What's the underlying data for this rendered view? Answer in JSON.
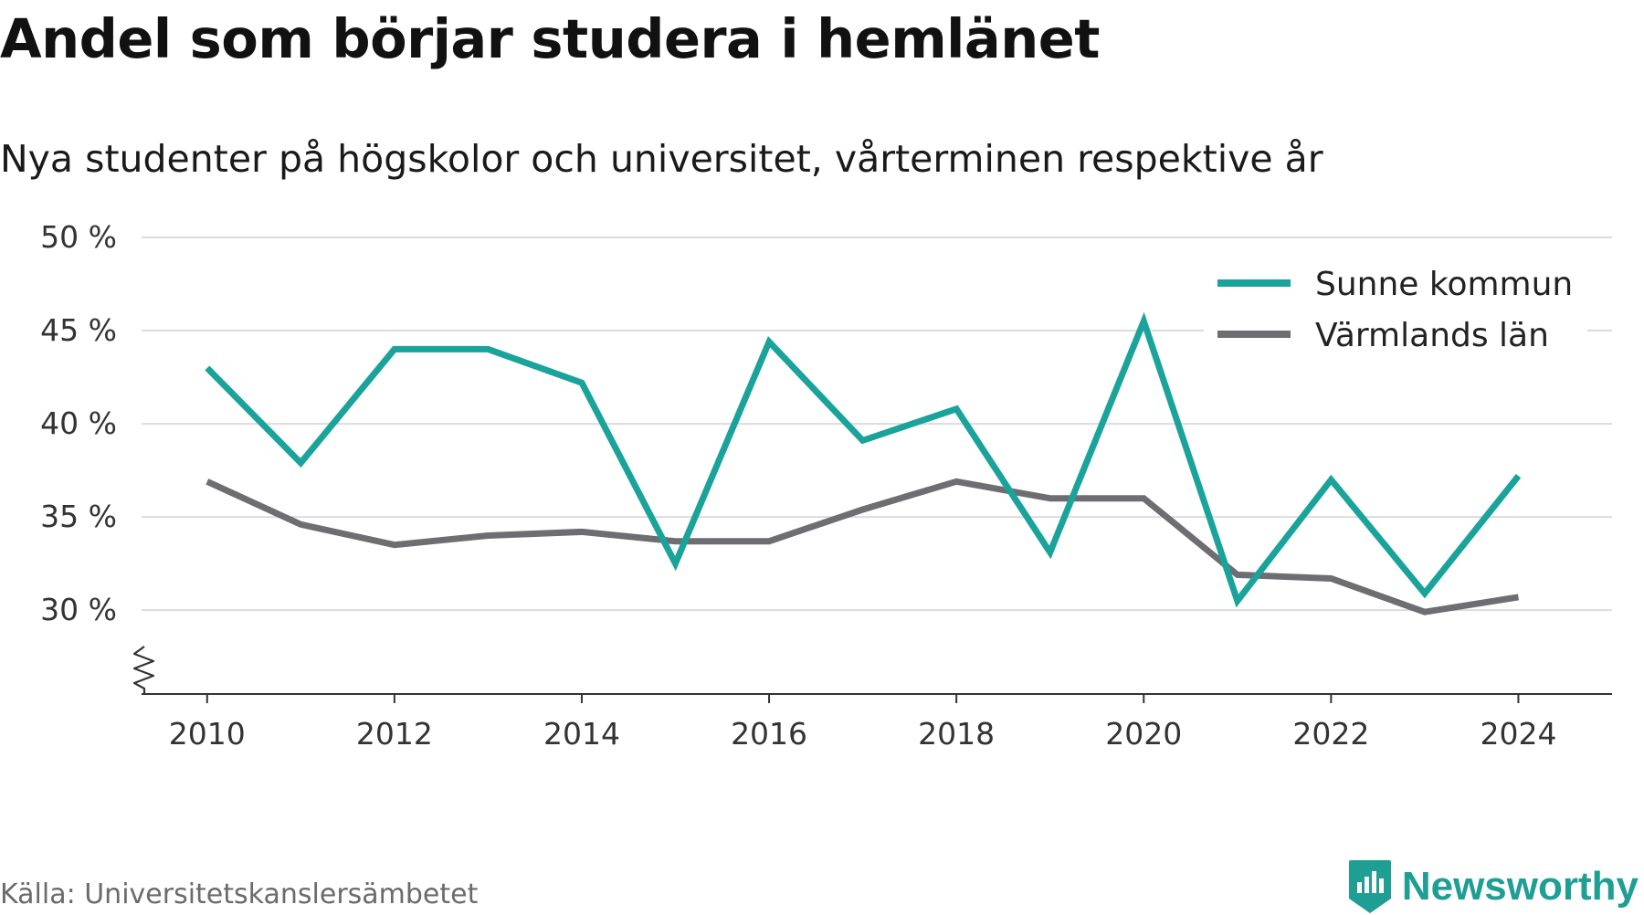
{
  "title": "Andel som börjar studera i hemlänet",
  "subtitle": "Nya studenter på högskolor och universitet, vårterminen respektive år",
  "source": "Källa: Universitetskanslersämbetet",
  "brand": {
    "name": "Newsworthy",
    "color": "#1f9e94",
    "icon": "newsworthy-logo-icon"
  },
  "chart_data": {
    "type": "line",
    "x": [
      2010,
      2011,
      2012,
      2013,
      2014,
      2015,
      2016,
      2017,
      2018,
      2019,
      2020,
      2021,
      2022,
      2023,
      2024
    ],
    "series": [
      {
        "name": "Sunne kommun",
        "color": "#1aa39a",
        "values": [
          43.0,
          37.9,
          44.0,
          44.0,
          42.2,
          32.5,
          44.4,
          39.1,
          40.8,
          33.1,
          45.5,
          30.5,
          37.0,
          30.9,
          37.2
        ]
      },
      {
        "name": "Värmlands län",
        "color": "#6e6d72",
        "values": [
          36.9,
          34.6,
          33.5,
          34.0,
          34.2,
          33.7,
          33.7,
          35.4,
          36.9,
          36.0,
          36.0,
          31.9,
          31.7,
          29.9,
          30.7
        ]
      }
    ],
    "x_ticks": [
      2010,
      2012,
      2014,
      2016,
      2018,
      2020,
      2022,
      2024
    ],
    "x_tick_labels": [
      "2010",
      "2012",
      "2014",
      "2016",
      "2018",
      "2020",
      "2022",
      "2024"
    ],
    "y_ticks": [
      30,
      35,
      40,
      45,
      50
    ],
    "y_tick_labels": [
      "30 %",
      "35 %",
      "40 %",
      "45 %",
      "50 %"
    ],
    "xlim": [
      2009.3,
      2025.0
    ],
    "ylim": [
      25.5,
      50
    ],
    "xlabel": "",
    "ylabel": "",
    "y_axis_break": true,
    "grid": "horizontal",
    "legend": "top-right"
  }
}
